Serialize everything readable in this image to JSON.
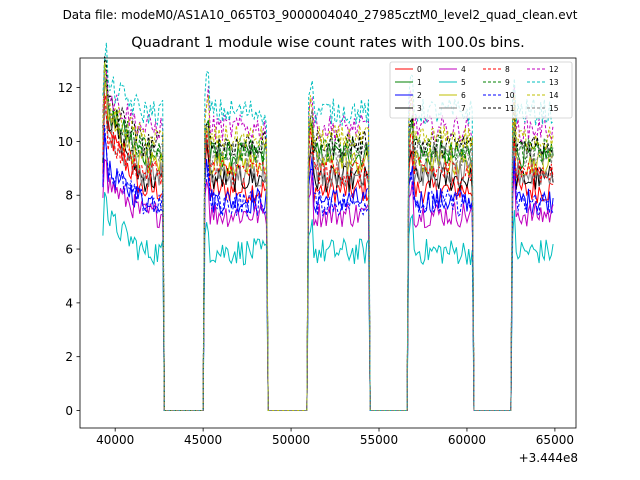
{
  "figure_title": "Data file: modeM0/AS1A10_065T03_9000004040_27985cztM0_level2_quad_clean.evt",
  "chart_data": {
    "type": "line",
    "title": "Quadrant 1 module wise count rates with 100.0s bins.",
    "xlabel": "",
    "ylabel": "",
    "x_offset_label": "+3.444e8",
    "xlim": [
      38000,
      66200
    ],
    "ylim": [
      -0.65,
      13.1
    ],
    "xticks": [
      40000,
      45000,
      50000,
      55000,
      60000,
      65000
    ],
    "xtick_labels": [
      "40000",
      "45000",
      "50000",
      "55000",
      "60000",
      "65000"
    ],
    "yticks": [
      0,
      2,
      4,
      6,
      8,
      10,
      12
    ],
    "ytick_labels": [
      "0",
      "2",
      "4",
      "6",
      "8",
      "10",
      "12"
    ],
    "legend_position": "top-right",
    "x_units": "seconds (offset +3.444e8)",
    "active_intervals": [
      [
        39300,
        42700
      ],
      [
        45100,
        48600
      ],
      [
        51000,
        54400
      ],
      [
        56700,
        60300
      ],
      [
        62600,
        64900
      ]
    ],
    "series": [
      {
        "name": "0",
        "color": "#ff0000",
        "dashed": false,
        "level": 8.2,
        "start": 10.6
      },
      {
        "name": "1",
        "color": "#008000",
        "dashed": false,
        "level": 9.5,
        "start": 11.3
      },
      {
        "name": "2",
        "color": "#0000ff",
        "dashed": false,
        "level": 7.8,
        "start": 9.0
      },
      {
        "name": "3",
        "color": "#000000",
        "dashed": false,
        "level": 8.6,
        "start": 11.2
      },
      {
        "name": "4",
        "color": "#bf00bf",
        "dashed": false,
        "level": 7.3,
        "start": 8.6
      },
      {
        "name": "5",
        "color": "#00bfbf",
        "dashed": false,
        "level": 5.9,
        "start": 7.3
      },
      {
        "name": "6",
        "color": "#bfbf00",
        "dashed": false,
        "level": 9.2,
        "start": 11.0
      },
      {
        "name": "7",
        "color": "#808080",
        "dashed": false,
        "level": 8.8,
        "start": 10.3
      },
      {
        "name": "8",
        "color": "#ff0000",
        "dashed": true,
        "level": 8.9,
        "start": 10.2
      },
      {
        "name": "9",
        "color": "#008000",
        "dashed": true,
        "level": 9.7,
        "start": 11.5
      },
      {
        "name": "10",
        "color": "#0000ff",
        "dashed": true,
        "level": 7.7,
        "start": 9.1
      },
      {
        "name": "11",
        "color": "#000000",
        "dashed": true,
        "level": 9.9,
        "start": 11.7
      },
      {
        "name": "12",
        "color": "#bf00bf",
        "dashed": true,
        "level": 10.5,
        "start": 11.9
      },
      {
        "name": "13",
        "color": "#00bfbf",
        "dashed": true,
        "level": 11.1,
        "start": 12.2
      },
      {
        "name": "14",
        "color": "#bfbf00",
        "dashed": true,
        "level": 10.1,
        "start": 11.3
      },
      {
        "name": "15",
        "color": "#808080",
        "dashed": true,
        "level": 9.5,
        "start": 11.0
      }
    ]
  }
}
